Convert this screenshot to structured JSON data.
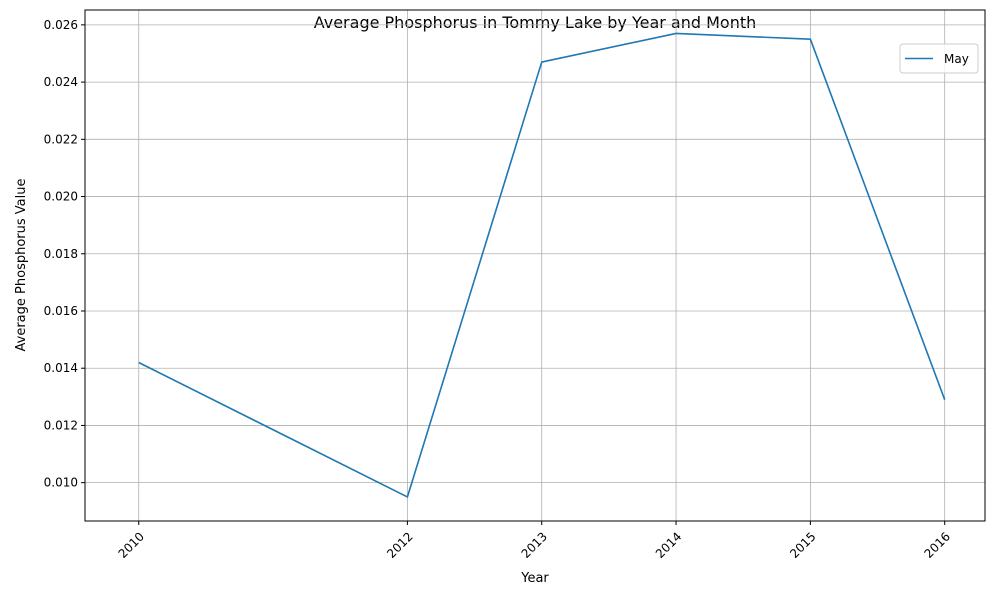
{
  "chart_data": {
    "type": "line",
    "title": "Average Phosphorus in Tommy Lake by Year and Month",
    "xlabel": "Year",
    "ylabel": "Average Phosphorus Value",
    "x": [
      2010,
      2012,
      2013,
      2014,
      2015,
      2016
    ],
    "x_tick_labels": [
      "2010",
      "2012",
      "2013",
      "2014",
      "2015",
      "2016"
    ],
    "xlim": [
      2009.6,
      2016.3
    ],
    "ylim": [
      0.00866,
      0.02652
    ],
    "y_ticks": [
      0.01,
      0.012,
      0.014,
      0.016,
      0.018,
      0.02,
      0.022,
      0.024,
      0.026
    ],
    "y_tick_labels": [
      "0.010",
      "0.012",
      "0.014",
      "0.016",
      "0.018",
      "0.020",
      "0.022",
      "0.024",
      "0.026"
    ],
    "series": [
      {
        "name": "May",
        "values": [
          0.0142,
          0.0095,
          0.0247,
          0.0257,
          0.0255,
          0.0129
        ],
        "color": "#1f77b4"
      }
    ],
    "grid": true,
    "legend_position": "top-right"
  }
}
